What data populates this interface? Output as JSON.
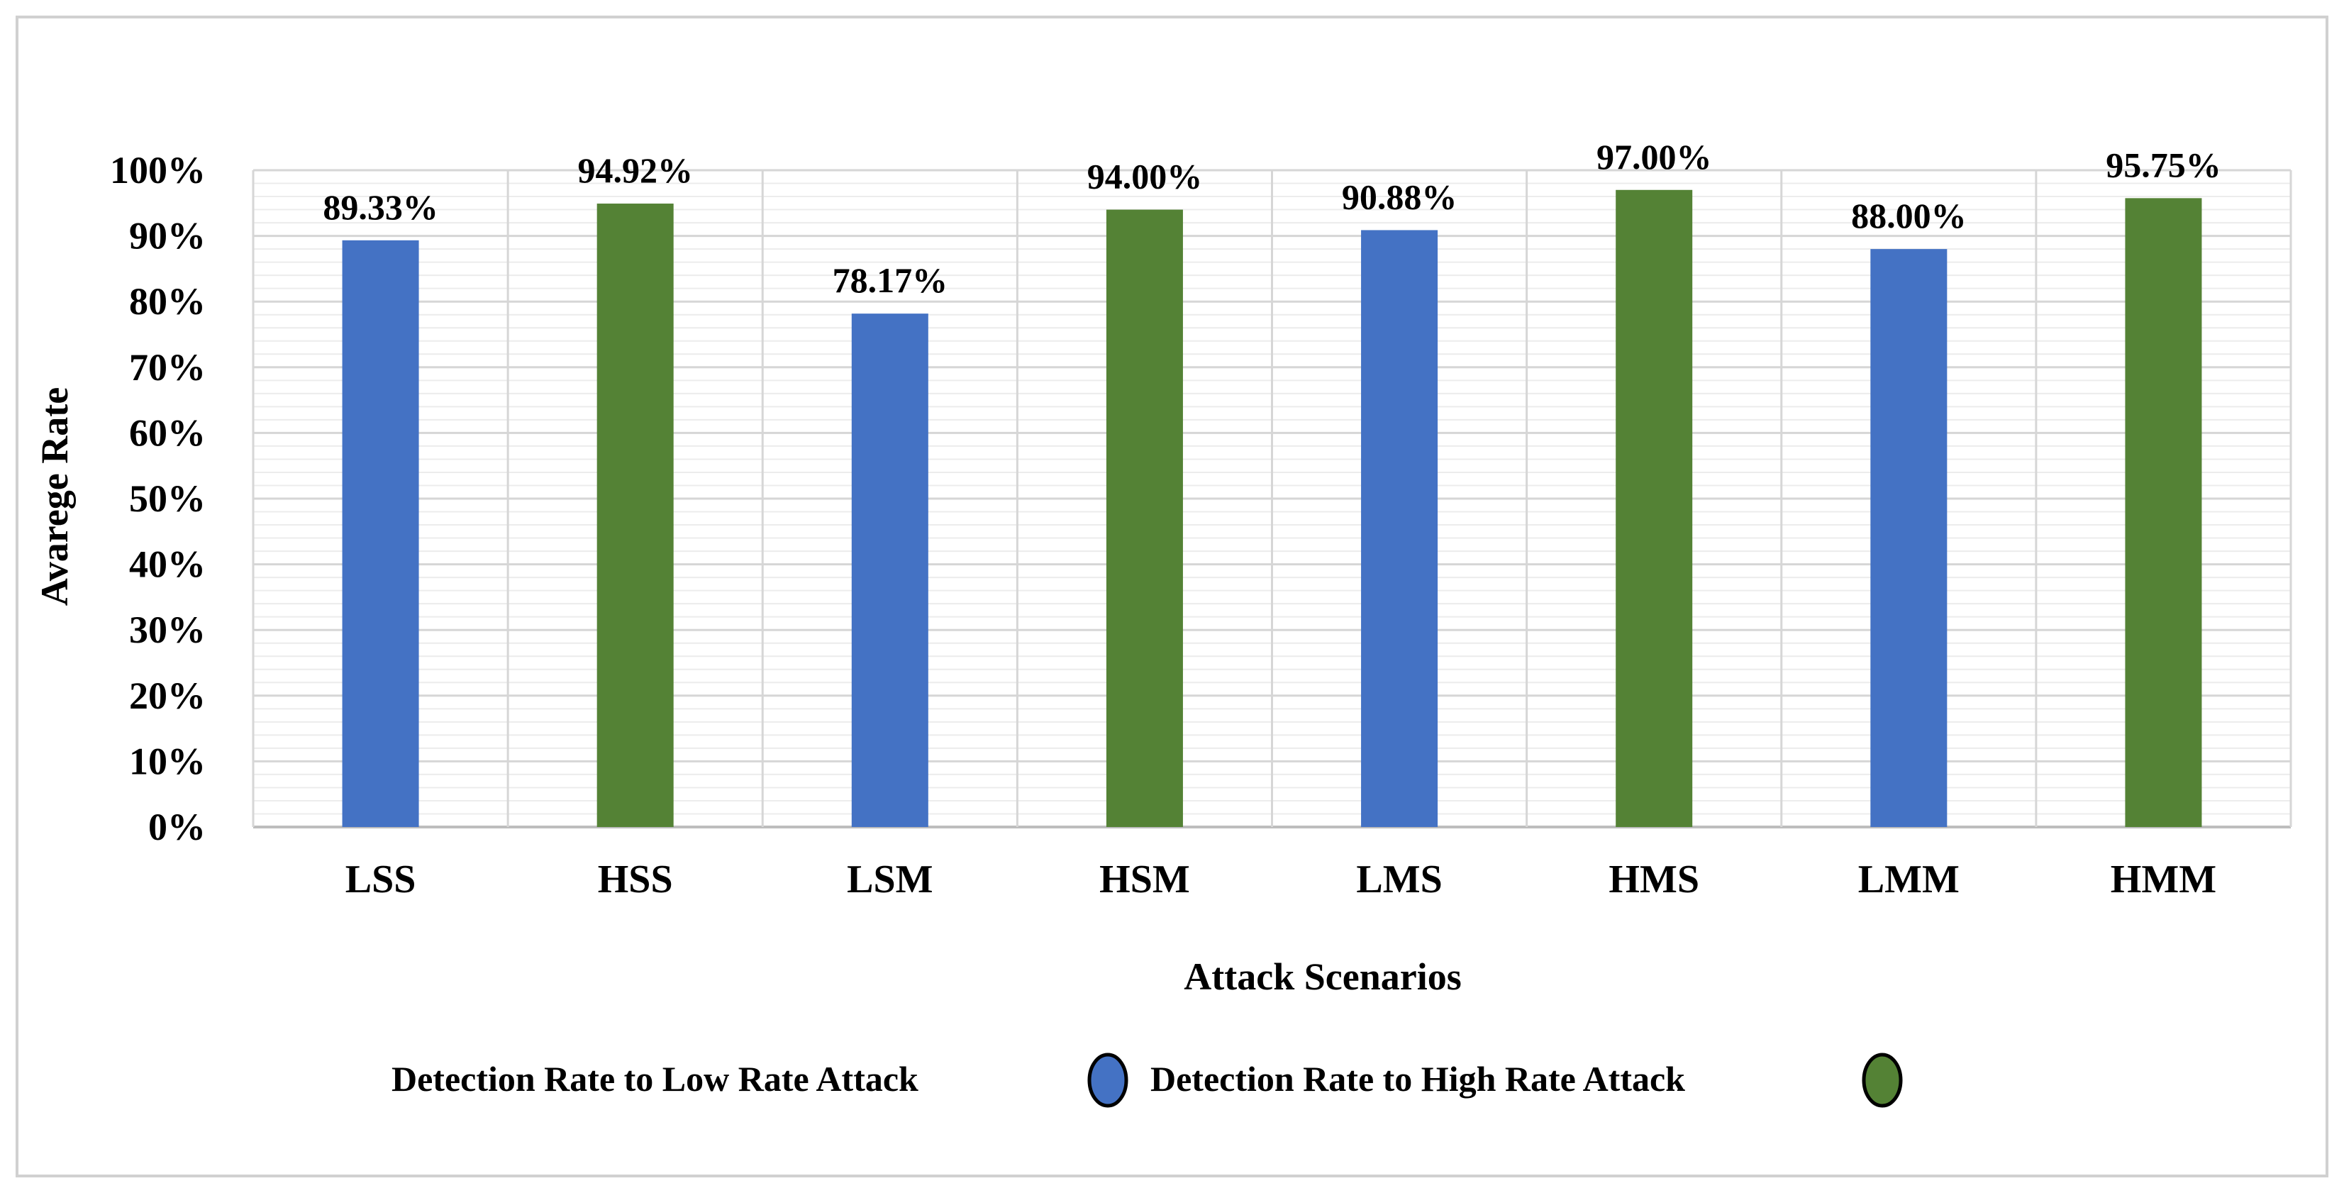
{
  "chart_data": {
    "type": "bar",
    "title": "",
    "xlabel": "Attack Scenarios",
    "ylabel": "Avarege Rate",
    "ylim": [
      0,
      100
    ],
    "yticks": [
      0,
      10,
      20,
      30,
      40,
      50,
      60,
      70,
      80,
      90,
      100
    ],
    "ytick_labels": [
      "0%",
      "10%",
      "20%",
      "30%",
      "40%",
      "50%",
      "60%",
      "70%",
      "80%",
      "90%",
      "100%"
    ],
    "grid": true,
    "legend_position": "bottom",
    "categories": [
      "LSS",
      "HSS",
      "LSM",
      "HSM",
      "LMS",
      "HMS",
      "LMM",
      "HMM"
    ],
    "values": [
      89.33,
      94.92,
      78.17,
      94.0,
      90.88,
      97.0,
      88.0,
      95.75
    ],
    "value_labels": [
      "89.33%",
      "94.92%",
      "78.17%",
      "94.00%",
      "90.88%",
      "97.00%",
      "88.00%",
      "95.75%"
    ],
    "bar_series": [
      0,
      1,
      0,
      1,
      0,
      1,
      0,
      1
    ],
    "series": [
      {
        "name": "Detection Rate to Low Rate Attack",
        "color": "#4472c4"
      },
      {
        "name": "Detection Rate to High Rate Attack",
        "color": "#548235"
      }
    ]
  }
}
